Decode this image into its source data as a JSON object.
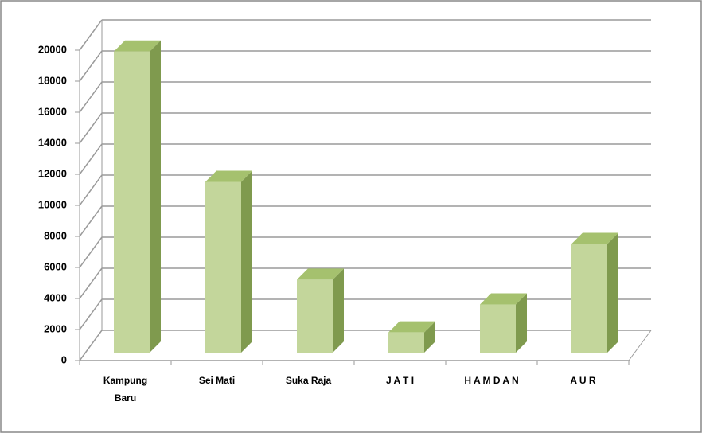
{
  "chart_data": {
    "type": "bar",
    "categories": [
      "Kampung Baru",
      "Sei Mati",
      "Suka Raja",
      "J A T I",
      "H A M D A N",
      "A U R"
    ],
    "values": [
      19400,
      11000,
      4700,
      1300,
      3100,
      7000
    ],
    "color": "#c3d69b",
    "ylim": [
      0,
      20000
    ],
    "yticks": [
      0,
      2000,
      4000,
      6000,
      8000,
      10000,
      12000,
      14000,
      16000,
      18000,
      20000
    ],
    "grid": true
  }
}
